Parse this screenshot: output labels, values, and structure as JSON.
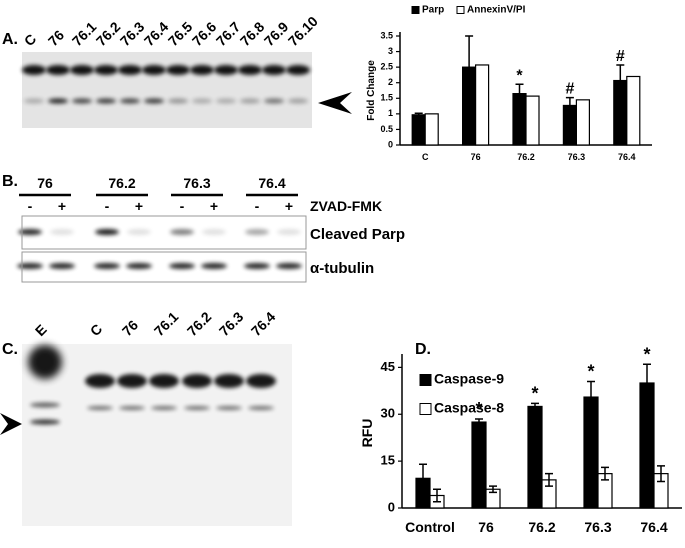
{
  "panels": {
    "a": {
      "label": "A.",
      "lanes": [
        "C",
        "76",
        "76.1",
        "76.2",
        "76.3",
        "76.4",
        "76.5",
        "76.6",
        "76.7",
        "76.8",
        "76.9",
        "76.10"
      ]
    },
    "b": {
      "label": "B.",
      "groups": [
        {
          "name": "76",
          "signs": [
            "-",
            "+"
          ]
        },
        {
          "name": "76.2",
          "signs": [
            "-",
            "+"
          ]
        },
        {
          "name": "76.3",
          "signs": [
            "-",
            "+"
          ]
        },
        {
          "name": "76.4",
          "signs": [
            "-",
            "+"
          ]
        }
      ],
      "treatment": "ZVAD-FMK",
      "rows": [
        "Cleaved Parp",
        "α-tubulin"
      ]
    },
    "c": {
      "label": "C.",
      "lanes": [
        "E",
        "C",
        "76",
        "76.1",
        "76.2",
        "76.3",
        "76.4"
      ]
    },
    "d": {
      "label": "D."
    }
  },
  "chart_data": [
    {
      "type": "bar",
      "ylabel": "Fold Change",
      "categories": [
        "C",
        "76",
        "76.2",
        "76.3",
        "76.4"
      ],
      "series": [
        {
          "name": "Parp",
          "color": "#000000",
          "values": [
            0.97,
            2.5,
            1.65,
            1.27,
            2.07
          ],
          "errors": [
            0.05,
            1.0,
            0.3,
            0.25,
            0.5
          ]
        },
        {
          "name": "AnnexinV/PI",
          "color": "#ffffff",
          "values": [
            1.0,
            2.57,
            1.57,
            1.45,
            2.2
          ]
        }
      ],
      "markers": [
        null,
        null,
        "*",
        "#",
        "#"
      ],
      "ylim": [
        0,
        3.5
      ],
      "yticks": [
        0,
        0.5,
        1,
        1.5,
        2,
        2.5,
        3,
        3.5
      ],
      "legend": "top"
    },
    {
      "type": "bar",
      "ylabel": "RFU",
      "categories": [
        "Control",
        "76",
        "76.2",
        "76.3",
        "76.4"
      ],
      "series": [
        {
          "name": "Caspase-9",
          "color": "#000000",
          "values": [
            9.5,
            27.5,
            32.5,
            35.5,
            40
          ],
          "errors": [
            4.5,
            1,
            1,
            5,
            6
          ]
        },
        {
          "name": "Caspase-8",
          "color": "#ffffff",
          "values": [
            4,
            6,
            9,
            11,
            11
          ],
          "errors": [
            2,
            1,
            2,
            2,
            2.5
          ]
        }
      ],
      "markers": [
        null,
        "*",
        "*",
        "*",
        "*"
      ],
      "ylim": [
        0,
        48
      ],
      "yticks": [
        0,
        15,
        30,
        45
      ],
      "legend": "upper left"
    }
  ]
}
